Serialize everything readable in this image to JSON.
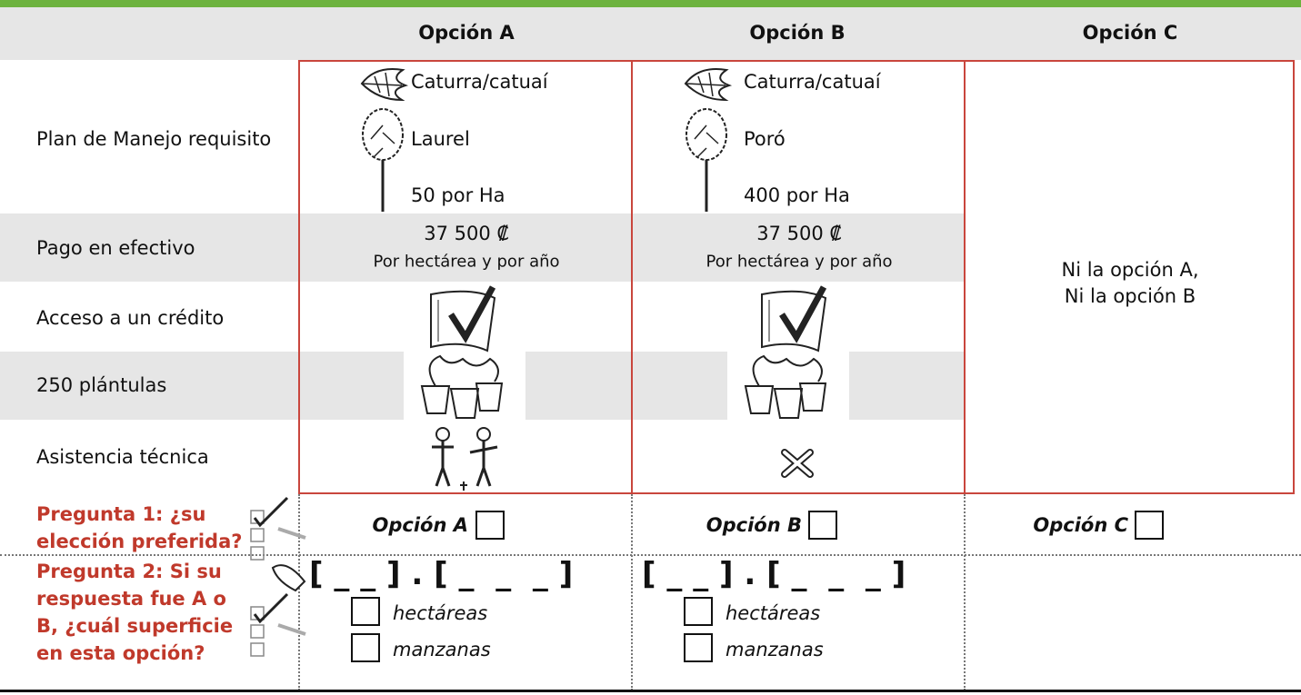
{
  "header": {
    "columns": [
      "Opción A",
      "Opción B",
      "Opción C"
    ]
  },
  "rows": [
    "Plan de Manejo requisito",
    "Pago en efectivo",
    "Acceso a un crédito",
    "250 plántulas",
    "Asistencia técnica"
  ],
  "options": [
    {
      "crop": "Caturra/catuaí",
      "tree": "Laurel",
      "density": "50 por Ha",
      "payment": "37 500 ₡",
      "payment_note": "Por hectárea y por año"
    },
    {
      "crop": "Caturra/catuaí",
      "tree": "Poró",
      "density": "400 por Ha",
      "payment": "37 500 ₡",
      "payment_note": "Por hectárea y por año"
    }
  ],
  "option_c_text": [
    "Ni la opción A,",
    "Ni la opción B"
  ],
  "questions": [
    {
      "label": "Pregunta 1: ¿su elección preferida?",
      "choices": [
        "Opción A",
        "Opción B",
        "Opción C"
      ]
    },
    {
      "label": "Pregunta 2: Si su respuesta fue A o B, ¿cuál superficie en esta opción?",
      "entry": "[ _ _ ] . [ _  _  _ ]",
      "units": [
        "hectáreas",
        "manzanas"
      ]
    }
  ]
}
